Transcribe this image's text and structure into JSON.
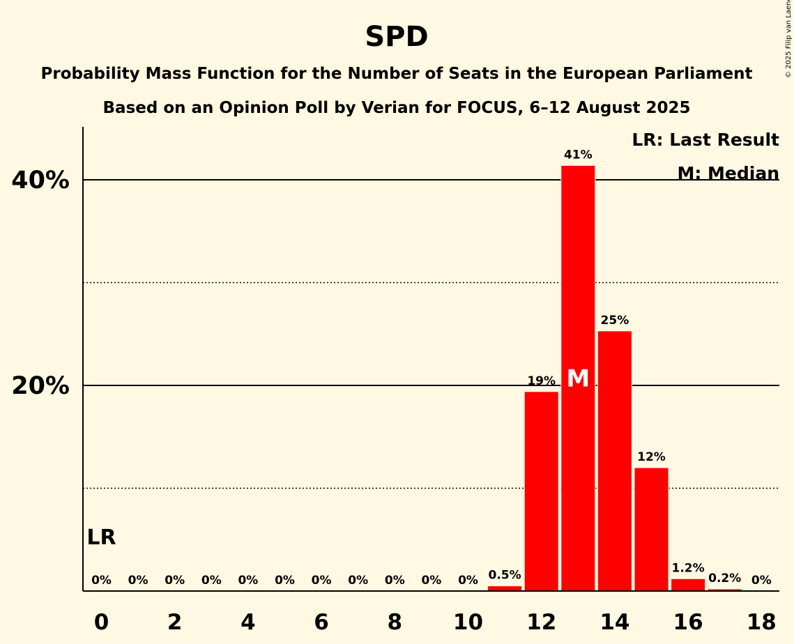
{
  "chart_data": {
    "type": "bar",
    "title": "SPD",
    "subtitle_1": "Probability Mass Function for the Number of Seats in the European Parliament",
    "subtitle_2": "Based on an Opinion Poll by Verian for FOCUS, 6–12 August 2025",
    "copyright": "© 2025 Filip van Laenen",
    "categories": [
      0,
      1,
      2,
      3,
      4,
      5,
      6,
      7,
      8,
      9,
      10,
      11,
      12,
      13,
      14,
      15,
      16,
      17,
      18
    ],
    "values": [
      0,
      0,
      0,
      0,
      0,
      0,
      0,
      0,
      0,
      0,
      0,
      0.5,
      19.4,
      41.4,
      25.3,
      12.0,
      1.2,
      0.2,
      0
    ],
    "data_labels": [
      "0%",
      "0%",
      "0%",
      "0%",
      "0%",
      "0%",
      "0%",
      "0%",
      "0%",
      "0%",
      "0%",
      "0.5%",
      "19%",
      "41%",
      "25%",
      "12%",
      "1.2%",
      "0.2%",
      "0%"
    ],
    "x_tick_labels": [
      "0",
      "2",
      "4",
      "6",
      "8",
      "10",
      "12",
      "14",
      "16",
      "18"
    ],
    "y_tick_labels": [
      "20%",
      "40%"
    ],
    "ylim": [
      0,
      45
    ],
    "major_gridlines": [
      20,
      40
    ],
    "minor_gridlines": [
      10,
      30
    ],
    "bar_color": "#ff0000",
    "background_color": "#fff8e2",
    "last_result_seat": 0,
    "last_result_label": "LR",
    "median_seat": 13,
    "median_label": "M",
    "legend": [
      "LR: Last Result",
      "M: Median"
    ],
    "legend_position": "top-right"
  }
}
